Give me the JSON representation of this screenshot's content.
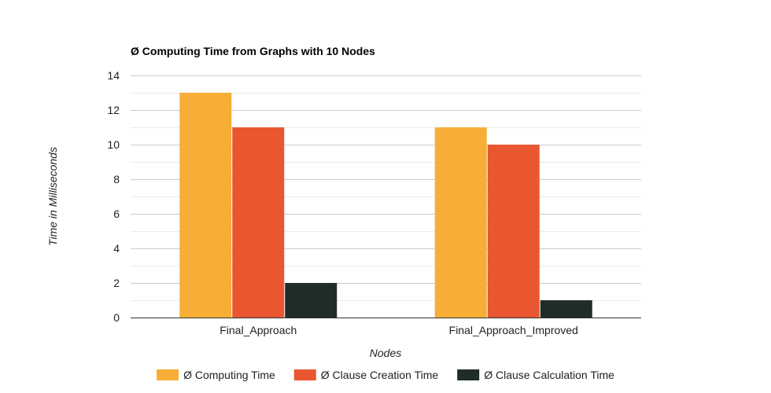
{
  "chart_data": {
    "type": "bar",
    "title": "Ø Computing Time from Graphs with 10 Nodes",
    "xlabel": "Nodes",
    "ylabel": "Time in Milliseconds",
    "categories": [
      "Final_Approach",
      "Final_Approach_Improved"
    ],
    "series": [
      {
        "name": "Ø Computing Time",
        "color": "#f6ae36",
        "values": [
          13,
          11
        ]
      },
      {
        "name": "Ø Clause Creation Time",
        "color": "#e95731",
        "values": [
          11,
          10
        ]
      },
      {
        "name": "Ø Clause Calculation Time",
        "color": "#202c27",
        "values": [
          2,
          1
        ]
      }
    ],
    "ylim": [
      0,
      14
    ],
    "yticks": [
      0,
      2,
      4,
      6,
      8,
      10,
      12,
      14
    ],
    "grid": true,
    "legend_position": "bottom"
  }
}
